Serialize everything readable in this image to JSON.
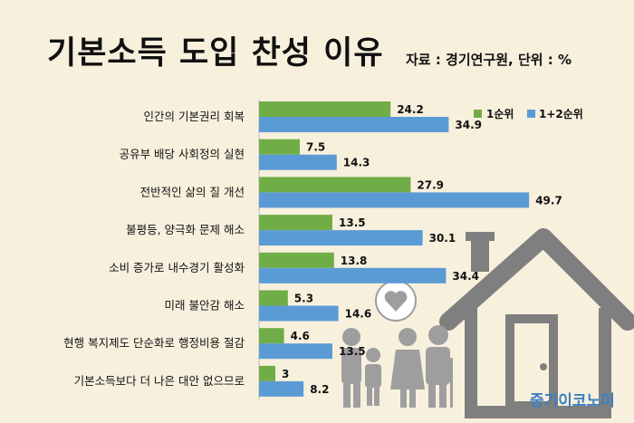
{
  "title": "기본소득 도입 찬성 이유",
  "source": "자료 : 경기연구원, 단위 : %",
  "brand": "중기이코노미",
  "colors": {
    "series1": "#70ad47",
    "series2": "#5b9bd5",
    "background": "#f7f0dd",
    "house": "#7f7f7f",
    "heart": "#9e9e9e"
  },
  "chart_data": {
    "type": "bar",
    "orientation": "horizontal",
    "categories": [
      "인간의 기본권리 회복",
      "공유부 배당 사회정의 실현",
      "전반적인 삶의 질 개선",
      "불평등, 양극화 문제 해소",
      "소비 증가로 내수경기 활성화",
      "미래 불안감 해소",
      "현행 복지제도 단순화로 행정비용 절감",
      "기본소득보다 더 나은 대안 없으므로"
    ],
    "series": [
      {
        "name": "1순위",
        "values": [
          24.2,
          7.5,
          27.9,
          13.5,
          13.8,
          5.3,
          4.6,
          3
        ],
        "labels": [
          "24.2",
          "7.5",
          "27.9",
          "13.5",
          "13.8",
          "5.3",
          "4.6",
          "3"
        ]
      },
      {
        "name": "1+2순위",
        "values": [
          34.9,
          14.3,
          49.7,
          30.1,
          34.4,
          14.6,
          13.5,
          8.2
        ],
        "labels": [
          "34.9",
          "14.3",
          "49.7",
          "30.1",
          "34.4",
          "14.6",
          "13.5",
          "8.2"
        ]
      }
    ],
    "legend_position": "top-right",
    "grid": false,
    "xlim": [
      0,
      50
    ]
  }
}
